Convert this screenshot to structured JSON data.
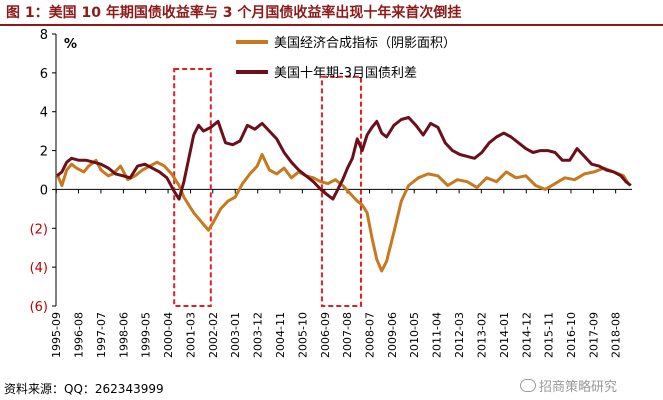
{
  "title": "图 1：美国 10 年期国债收益率与 3 个月国债收益率出现十年来首次倒挂",
  "source": {
    "label": "资料来源：",
    "text": "QQ：262343999"
  },
  "watermark": "招商策略研究",
  "chart_data": {
    "type": "line",
    "ylabel": "%",
    "ylim": [
      -6,
      8
    ],
    "yticks": [
      -6,
      -4,
      -2,
      0,
      2,
      4,
      6,
      8
    ],
    "ytick_labels": [
      "(6)",
      "(4)",
      "(2)",
      "0",
      "2",
      "4",
      "6",
      "8"
    ],
    "xlim": [
      1995.66,
      2019.25
    ],
    "xtick_labels": [
      "1995-09",
      "1996-08",
      "1997-07",
      "1998-06",
      "1999-05",
      "2000-04",
      "2001-03",
      "2002-02",
      "2003-01",
      "2003-12",
      "2004-11",
      "2005-10",
      "2006-09",
      "2007-08",
      "2008-07",
      "2009-06",
      "2010-05",
      "2011-04",
      "2012-03",
      "2013-02",
      "2014-01",
      "2014-12",
      "2015-11",
      "2016-10",
      "2017-09",
      "2018-08"
    ],
    "xticks": [
      1995.67,
      1996.58,
      1997.5,
      1998.42,
      1999.33,
      2000.25,
      2001.17,
      2002.08,
      2003.0,
      2003.92,
      2004.83,
      2005.75,
      2006.67,
      2007.58,
      2008.5,
      2009.42,
      2010.33,
      2011.25,
      2012.17,
      2013.08,
      2014.0,
      2014.92,
      2015.83,
      2016.75,
      2017.67,
      2018.58
    ],
    "grid": false,
    "legend_position": "top-center",
    "series": [
      {
        "name": "美国经济合成指标（阴影面积）",
        "color": "#c8781e",
        "x": [
          1995.7,
          1995.9,
          1996.1,
          1996.3,
          1996.5,
          1996.8,
          1997.0,
          1997.3,
          1997.5,
          1997.8,
          1998.0,
          1998.3,
          1998.6,
          1998.9,
          1999.2,
          1999.5,
          1999.8,
          2000.1,
          2000.4,
          2000.7,
          2000.9,
          2001.1,
          2001.3,
          2001.5,
          2001.7,
          2001.9,
          2002.1,
          2002.4,
          2002.7,
          2003.0,
          2003.3,
          2003.6,
          2003.9,
          2004.1,
          2004.4,
          2004.7,
          2005.0,
          2005.3,
          2005.6,
          2005.9,
          2006.2,
          2006.5,
          2006.8,
          2007.1,
          2007.4,
          2007.7,
          2008.0,
          2008.2,
          2008.4,
          2008.6,
          2008.8,
          2009.0,
          2009.2,
          2009.5,
          2009.8,
          2010.1,
          2010.5,
          2010.9,
          2011.3,
          2011.7,
          2012.1,
          2012.5,
          2012.9,
          2013.3,
          2013.7,
          2014.1,
          2014.5,
          2014.9,
          2015.3,
          2015.7,
          2016.1,
          2016.5,
          2016.9,
          2017.3,
          2017.7,
          2018.1,
          2018.5,
          2018.9,
          2019.1
        ],
        "y": [
          0.8,
          0.2,
          1.0,
          1.3,
          1.1,
          0.9,
          1.2,
          1.5,
          1.0,
          0.7,
          0.8,
          1.2,
          0.5,
          0.7,
          1.0,
          1.2,
          1.4,
          1.2,
          0.8,
          0.2,
          -0.4,
          -0.8,
          -1.2,
          -1.5,
          -1.8,
          -2.1,
          -1.7,
          -1.0,
          -0.6,
          -0.4,
          0.3,
          0.8,
          1.2,
          1.8,
          1.0,
          0.8,
          1.1,
          0.6,
          0.9,
          0.7,
          0.6,
          0.4,
          0.3,
          0.5,
          0.2,
          -0.2,
          -0.6,
          -0.8,
          -1.2,
          -2.5,
          -3.6,
          -4.2,
          -3.7,
          -2.2,
          -0.6,
          0.2,
          0.6,
          0.8,
          0.7,
          0.2,
          0.5,
          0.4,
          0.1,
          0.6,
          0.4,
          0.9,
          0.6,
          0.7,
          0.2,
          0.0,
          0.3,
          0.6,
          0.5,
          0.8,
          0.9,
          1.1,
          0.9,
          0.7,
          0.3
        ]
      },
      {
        "name": "美国十年期-3月国债利差",
        "color": "#6b0f1a",
        "x": [
          1995.7,
          1995.9,
          1996.1,
          1996.3,
          1996.6,
          1996.9,
          1997.2,
          1997.5,
          1997.8,
          1998.1,
          1998.4,
          1998.7,
          1999.0,
          1999.3,
          1999.6,
          1999.9,
          2000.2,
          2000.5,
          2000.7,
          2000.9,
          2001.1,
          2001.3,
          2001.5,
          2001.7,
          2002.0,
          2002.3,
          2002.6,
          2002.9,
          2003.2,
          2003.5,
          2003.8,
          2004.1,
          2004.4,
          2004.7,
          2005.0,
          2005.3,
          2005.6,
          2005.9,
          2006.2,
          2006.5,
          2006.8,
          2007.0,
          2007.2,
          2007.4,
          2007.6,
          2007.8,
          2008.0,
          2008.2,
          2008.4,
          2008.6,
          2008.8,
          2009.0,
          2009.2,
          2009.5,
          2009.8,
          2010.1,
          2010.4,
          2010.7,
          2011.0,
          2011.3,
          2011.6,
          2011.9,
          2012.2,
          2012.5,
          2012.8,
          2013.1,
          2013.4,
          2013.7,
          2014.0,
          2014.3,
          2014.6,
          2014.9,
          2015.2,
          2015.5,
          2015.8,
          2016.1,
          2016.4,
          2016.7,
          2017.0,
          2017.3,
          2017.6,
          2017.9,
          2018.2,
          2018.5,
          2018.8,
          2019.0,
          2019.2
        ],
        "y": [
          0.7,
          0.9,
          1.4,
          1.6,
          1.5,
          1.5,
          1.4,
          1.3,
          1.1,
          0.8,
          0.7,
          0.6,
          1.2,
          1.3,
          1.1,
          0.9,
          0.6,
          -0.1,
          -0.5,
          0.4,
          1.6,
          2.8,
          3.3,
          3.0,
          3.2,
          3.5,
          2.4,
          2.3,
          2.5,
          3.3,
          3.1,
          3.4,
          3.0,
          2.6,
          1.9,
          1.4,
          1.0,
          0.7,
          0.4,
          0.0,
          -0.3,
          -0.5,
          0.0,
          0.5,
          1.1,
          1.6,
          2.6,
          2.0,
          2.8,
          3.2,
          3.5,
          2.9,
          2.7,
          3.3,
          3.6,
          3.7,
          3.3,
          2.8,
          3.4,
          3.2,
          2.4,
          2.0,
          1.8,
          1.7,
          1.6,
          1.9,
          2.4,
          2.7,
          2.9,
          2.7,
          2.4,
          2.1,
          1.9,
          2.0,
          2.0,
          1.9,
          1.5,
          1.5,
          2.1,
          1.7,
          1.3,
          1.2,
          1.0,
          0.9,
          0.7,
          0.4,
          0.2
        ]
      }
    ],
    "annotations": [
      {
        "type": "dashed-box",
        "color": "#e02020",
        "x0": 2000.5,
        "x1": 2002.0,
        "y0": -6.0,
        "y1": 6.2
      },
      {
        "type": "dashed-box",
        "color": "#e02020",
        "x0": 2006.55,
        "x1": 2008.15,
        "y0": -6.0,
        "y1": 5.8
      }
    ]
  }
}
